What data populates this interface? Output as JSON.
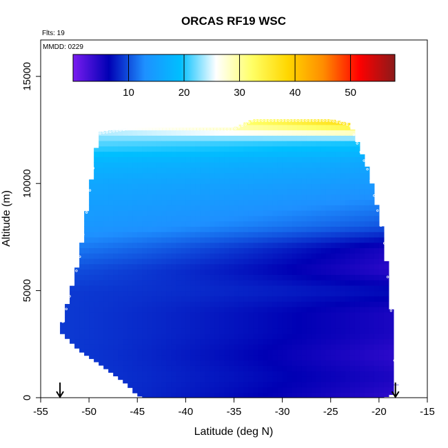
{
  "chart_data": {
    "type": "heatmap",
    "title": "ORCAS RF19 WSC",
    "annotation_flts": "Flts: 19",
    "annotation_mmdd": "MMDD: 0229",
    "xlabel": "Latitude (deg N)",
    "ylabel": "Altitude (m)",
    "xlim": [
      -55,
      -15
    ],
    "ylim": [
      0,
      16700
    ],
    "x_ticks": [
      -55,
      -50,
      -45,
      -40,
      -35,
      -30,
      -25,
      -20,
      -15
    ],
    "y_ticks": [
      0,
      5000,
      10000,
      15000
    ],
    "colorbar": {
      "range": [
        0,
        58
      ],
      "ticks": [
        10,
        20,
        30,
        40,
        50
      ],
      "colors": [
        "#7a1cf0",
        "#0000b4",
        "#1e90ff",
        "#00bfff",
        "#ffffff",
        "#ffff66",
        "#ffd700",
        "#ff8c00",
        "#ff0000",
        "#8b1a1a"
      ]
    },
    "markers": {
      "arrow_latitudes": [
        -53,
        -18.3
      ]
    },
    "envelope": {
      "latitude": [
        -53.0,
        -51.0,
        -49.0,
        -46.0,
        -45.0,
        -44.0,
        -43.0,
        -42.0,
        -40.0,
        -38.0,
        -36.0,
        -35.0,
        -33.0,
        -31.0,
        -28.0,
        -25.0,
        -23.0,
        -21.0,
        -19.5,
        -18.5,
        -18.3
      ],
      "top_altitude": [
        3100,
        6500,
        12400,
        12600,
        12600,
        12600,
        12600,
        12600,
        12600,
        12600,
        12600,
        12600,
        13000,
        13000,
        13000,
        13000,
        12800,
        10500,
        7500,
        3000,
        600
      ],
      "bottom_altitude": [
        3100,
        2200,
        1600,
        600,
        100,
        0,
        0,
        0,
        0,
        0,
        0,
        0,
        0,
        0,
        0,
        0,
        0,
        0,
        0,
        200,
        600
      ]
    },
    "field_profile": {
      "altitude": [
        0,
        1000,
        2000,
        3000,
        4000,
        5000,
        6000,
        7000,
        8000,
        9000,
        10000,
        11000,
        12000,
        12800
      ],
      "south_value": [
        9,
        9,
        9,
        9,
        9,
        9,
        10,
        12,
        14,
        15,
        16,
        18,
        22,
        25
      ],
      "north_value": [
        4,
        5,
        4,
        5,
        5,
        7,
        4,
        5,
        10,
        12,
        14,
        16,
        20,
        40
      ]
    }
  }
}
